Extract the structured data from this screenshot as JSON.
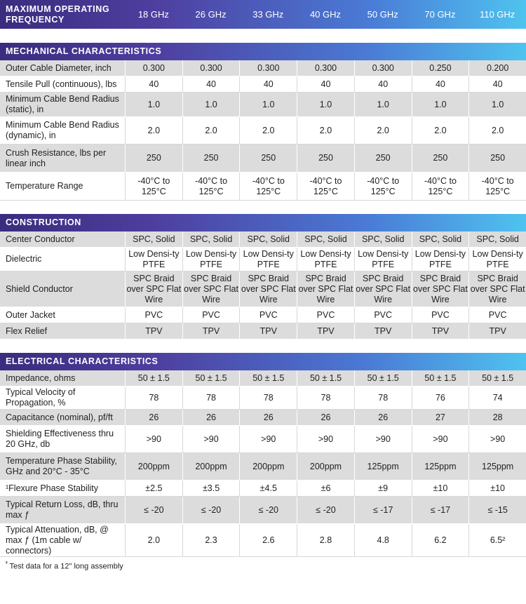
{
  "header": {
    "label": "MAXIMUM OPERATING FREQUENCY",
    "frequencies": [
      "18 GHz",
      "26 GHz",
      "33 GHz",
      "40 GHz",
      "50 GHz",
      "70 GHz",
      "110 GHz"
    ]
  },
  "sections": [
    {
      "title": "MECHANICAL CHARACTERISTICS",
      "rows": [
        {
          "label": "Outer Cable Diameter, inch",
          "values": [
            "0.300",
            "0.300",
            "0.300",
            "0.300",
            "0.300",
            "0.250",
            "0.200"
          ]
        },
        {
          "label": "Tensile Pull (continuous), lbs",
          "values": [
            "40",
            "40",
            "40",
            "40",
            "40",
            "40",
            "40"
          ]
        },
        {
          "label": "Minimum Cable Bend Radius (static), in",
          "values": [
            "1.0",
            "1.0",
            "1.0",
            "1.0",
            "1.0",
            "1.0",
            "1.0"
          ]
        },
        {
          "label": "Minimum Cable Bend Radius (dynamic), in",
          "values": [
            "2.0",
            "2.0",
            "2.0",
            "2.0",
            "2.0",
            "2.0",
            "2.0"
          ]
        },
        {
          "label": "Crush Resistance, lbs per linear inch",
          "values": [
            "250",
            "250",
            "250",
            "250",
            "250",
            "250",
            "250"
          ]
        },
        {
          "label": "Temperature Range",
          "values": [
            "-40°C to 125°C",
            "-40°C to 125°C",
            "-40°C to 125°C",
            "-40°C to 125°C",
            "-40°C to 125°C",
            "-40°C to 125°C",
            "-40°C to 125°C"
          ]
        }
      ]
    },
    {
      "title": "CONSTRUCTION",
      "rows": [
        {
          "label": "Center Conductor",
          "values": [
            "SPC, Solid",
            "SPC, Solid",
            "SPC, Solid",
            "SPC, Solid",
            "SPC, Solid",
            "SPC, Solid",
            "SPC, Solid"
          ]
        },
        {
          "label": "Dielectric",
          "values": [
            "Low Densi-ty PTFE",
            "Low Densi-ty PTFE",
            "Low Densi-ty PTFE",
            "Low Densi-ty PTFE",
            "Low Densi-ty PTFE",
            "Low Densi-ty PTFE",
            "Low Densi-ty PTFE"
          ]
        },
        {
          "label": "Shield Conductor",
          "values": [
            "SPC Braid over SPC Flat Wire",
            "SPC Braid over SPC Flat Wire",
            "SPC Braid over SPC Flat Wire",
            "SPC Braid over SPC Flat Wire",
            "SPC Braid over SPC Flat Wire",
            "SPC Braid over SPC Flat Wire",
            "SPC Braid over SPC Flat Wire"
          ]
        },
        {
          "label": "Outer Jacket",
          "values": [
            "PVC",
            "PVC",
            "PVC",
            "PVC",
            "PVC",
            "PVC",
            "PVC"
          ]
        },
        {
          "label": "Flex Relief",
          "values": [
            "TPV",
            "TPV",
            "TPV",
            "TPV",
            "TPV",
            "TPV",
            "TPV"
          ]
        }
      ]
    },
    {
      "title": "ELECTRICAL CHARACTERISTICS",
      "rows": [
        {
          "label": "Impedance, ohms",
          "values": [
            "50 ± 1.5",
            "50 ± 1.5",
            "50 ± 1.5",
            "50 ± 1.5",
            "50 ± 1.5",
            "50 ± 1.5",
            "50 ± 1.5"
          ]
        },
        {
          "label": "Typical Velocity of Propagation, %",
          "values": [
            "78",
            "78",
            "78",
            "78",
            "78",
            "76",
            "74"
          ]
        },
        {
          "label": "Capacitance (nominal), pf/ft",
          "values": [
            "26",
            "26",
            "26",
            "26",
            "26",
            "27",
            "28"
          ]
        },
        {
          "label": "Shielding Effectiveness thru 20 GHz, db",
          "values": [
            ">90",
            ">90",
            ">90",
            ">90",
            ">90",
            ">90",
            ">90"
          ]
        },
        {
          "label": "Temperature Phase Stability, GHz and 20°C - 35°C",
          "values": [
            "200ppm",
            "200ppm",
            "200ppm",
            "200ppm",
            "125ppm",
            "125ppm",
            "125ppm"
          ]
        },
        {
          "label": "¹Flexure Phase Stability",
          "values": [
            "±2.5",
            "±3.5",
            "±4.5",
            "±6",
            "±9",
            "±10",
            "±10"
          ]
        },
        {
          "label": "Typical Return Loss, dB, thru max ƒ",
          "values": [
            "≤ -20",
            "≤ -20",
            "≤ -20",
            "≤ -20",
            "≤ -17",
            "≤ -17",
            "≤ -15"
          ]
        },
        {
          "label": "Typical Attenuation, dB, @ max ƒ (1m cable w/ connectors)",
          "values": [
            "2.0",
            "2.3",
            "2.6",
            "2.8",
            "4.8",
            "6.2",
            "6.5²"
          ]
        }
      ]
    }
  ],
  "footnote": {
    "marker": "²",
    "text": "Test data for a 12\" long assembly"
  }
}
